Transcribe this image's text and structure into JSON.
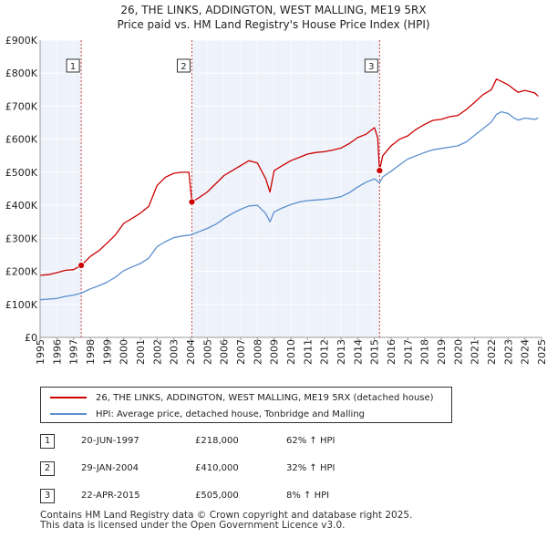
{
  "chart_data": {
    "type": "line",
    "title": "26, THE LINKS, ADDINGTON, WEST MALLING, ME19 5RX",
    "subtitle": "Price paid vs. HM Land Registry's House Price Index (HPI)",
    "xlabel": "",
    "ylabel": "",
    "xlim": [
      1995,
      2025
    ],
    "ylim": [
      0,
      900000
    ],
    "y_ticks": [
      {
        "value": 0,
        "label": "£0"
      },
      {
        "value": 100000,
        "label": "£100K"
      },
      {
        "value": 200000,
        "label": "£200K"
      },
      {
        "value": 300000,
        "label": "£300K"
      },
      {
        "value": 400000,
        "label": "£400K"
      },
      {
        "value": 500000,
        "label": "£500K"
      },
      {
        "value": 600000,
        "label": "£600K"
      },
      {
        "value": 700000,
        "label": "£700K"
      },
      {
        "value": 800000,
        "label": "£800K"
      },
      {
        "value": 900000,
        "label": "£900K"
      }
    ],
    "x_ticks": [
      "1995",
      "1996",
      "1997",
      "1998",
      "1999",
      "2000",
      "2001",
      "2002",
      "2003",
      "2004",
      "2005",
      "2006",
      "2007",
      "2008",
      "2009",
      "2010",
      "2011",
      "2012",
      "2013",
      "2014",
      "2015",
      "2016",
      "2017",
      "2018",
      "2019",
      "2020",
      "2021",
      "2022",
      "2023",
      "2024",
      "2025"
    ],
    "grid": true,
    "colors": {
      "property": "#cc0000",
      "hpi": "#5b8fcf",
      "shade": "#dde6f5",
      "vline": "#d04040"
    },
    "series": [
      {
        "name": "26, THE LINKS, ADDINGTON, WEST MALLING, ME19 5RX (detached house)",
        "color": "#cc0000",
        "x": [
          1995.0,
          1995.5,
          1996.0,
          1996.5,
          1997.0,
          1997.46,
          1998.0,
          1998.5,
          1999.0,
          1999.5,
          2000.0,
          2000.5,
          2001.0,
          2001.5,
          2002.0,
          2002.5,
          2003.0,
          2003.5,
          2003.9,
          2004.08,
          2004.5,
          2005.0,
          2005.5,
          2006.0,
          2006.5,
          2007.0,
          2007.5,
          2008.0,
          2008.5,
          2008.75,
          2009.0,
          2009.5,
          2010.0,
          2010.5,
          2011.0,
          2011.5,
          2012.0,
          2012.5,
          2013.0,
          2013.5,
          2014.0,
          2014.5,
          2015.0,
          2015.2,
          2015.31,
          2015.5,
          2016.0,
          2016.5,
          2017.0,
          2017.5,
          2018.0,
          2018.5,
          2019.0,
          2019.5,
          2020.0,
          2020.5,
          2021.0,
          2021.5,
          2022.0,
          2022.3,
          2022.6,
          2023.0,
          2023.3,
          2023.6,
          2024.0,
          2024.3,
          2024.6,
          2024.8
        ],
        "values": [
          188000,
          190000,
          196000,
          203000,
          205000,
          218000,
          245000,
          262000,
          285000,
          310000,
          345000,
          360000,
          376000,
          397000,
          460000,
          485000,
          497000,
          500000,
          500000,
          410000,
          423000,
          440000,
          465000,
          490000,
          505000,
          520000,
          535000,
          528000,
          480000,
          440000,
          505000,
          520000,
          535000,
          545000,
          555000,
          560000,
          562000,
          567000,
          573000,
          587000,
          605000,
          615000,
          635000,
          605000,
          505000,
          550000,
          580000,
          600000,
          610000,
          630000,
          645000,
          657000,
          660000,
          668000,
          672000,
          690000,
          712000,
          735000,
          750000,
          782000,
          775000,
          765000,
          753000,
          742000,
          748000,
          744000,
          740000,
          730000
        ]
      },
      {
        "name": "HPI: Average price, detached house, Tonbridge and Malling",
        "color": "#5b8fcf",
        "x": [
          1995.0,
          1995.5,
          1996.0,
          1996.5,
          1997.0,
          1997.46,
          1998.0,
          1998.5,
          1999.0,
          1999.5,
          2000.0,
          2000.5,
          2001.0,
          2001.5,
          2002.0,
          2002.5,
          2003.0,
          2003.5,
          2004.0,
          2004.5,
          2005.0,
          2005.5,
          2006.0,
          2006.5,
          2007.0,
          2007.5,
          2008.0,
          2008.5,
          2008.75,
          2009.0,
          2009.5,
          2010.0,
          2010.5,
          2011.0,
          2011.5,
          2012.0,
          2012.5,
          2013.0,
          2013.5,
          2014.0,
          2014.5,
          2015.0,
          2015.31,
          2015.5,
          2016.0,
          2016.5,
          2017.0,
          2017.5,
          2018.0,
          2018.5,
          2019.0,
          2019.5,
          2020.0,
          2020.5,
          2021.0,
          2021.5,
          2022.0,
          2022.3,
          2022.6,
          2023.0,
          2023.3,
          2023.6,
          2024.0,
          2024.3,
          2024.6,
          2024.8
        ],
        "values": [
          114000,
          116000,
          118000,
          124000,
          128000,
          134000,
          147000,
          156000,
          167000,
          182000,
          202000,
          213000,
          224000,
          240000,
          275000,
          290000,
          302000,
          307000,
          310000,
          320000,
          330000,
          342000,
          360000,
          375000,
          388000,
          398000,
          400000,
          375000,
          350000,
          380000,
          392000,
          402000,
          410000,
          414000,
          416000,
          418000,
          421000,
          426000,
          438000,
          455000,
          470000,
          480000,
          468000,
          486000,
          503000,
          522000,
          540000,
          550000,
          560000,
          568000,
          572000,
          576000,
          580000,
          592000,
          612000,
          632000,
          652000,
          675000,
          683000,
          678000,
          666000,
          658000,
          664000,
          662000,
          660000,
          664000
        ]
      }
    ],
    "annotations": [
      {
        "num": "1",
        "x": 1997.46,
        "price": 218000
      },
      {
        "num": "2",
        "x": 2004.08,
        "price": 410000
      },
      {
        "num": "3",
        "x": 2015.31,
        "price": 505000
      }
    ]
  },
  "legend": {
    "property": "26, THE LINKS, ADDINGTON, WEST MALLING, ME19 5RX (detached house)",
    "hpi": "HPI: Average price, detached house, Tonbridge and Malling"
  },
  "sales": [
    {
      "num": "1",
      "date": "20-JUN-1997",
      "price": "£218,000",
      "hpi": "62% ↑ HPI"
    },
    {
      "num": "2",
      "date": "29-JAN-2004",
      "price": "£410,000",
      "hpi": "32% ↑ HPI"
    },
    {
      "num": "3",
      "date": "22-APR-2015",
      "price": "£505,000",
      "hpi": "8% ↑ HPI"
    }
  ],
  "footer": {
    "line1": "Contains HM Land Registry data © Crown copyright and database right 2025.",
    "line2": "This data is licensed under the Open Government Licence v3.0."
  }
}
